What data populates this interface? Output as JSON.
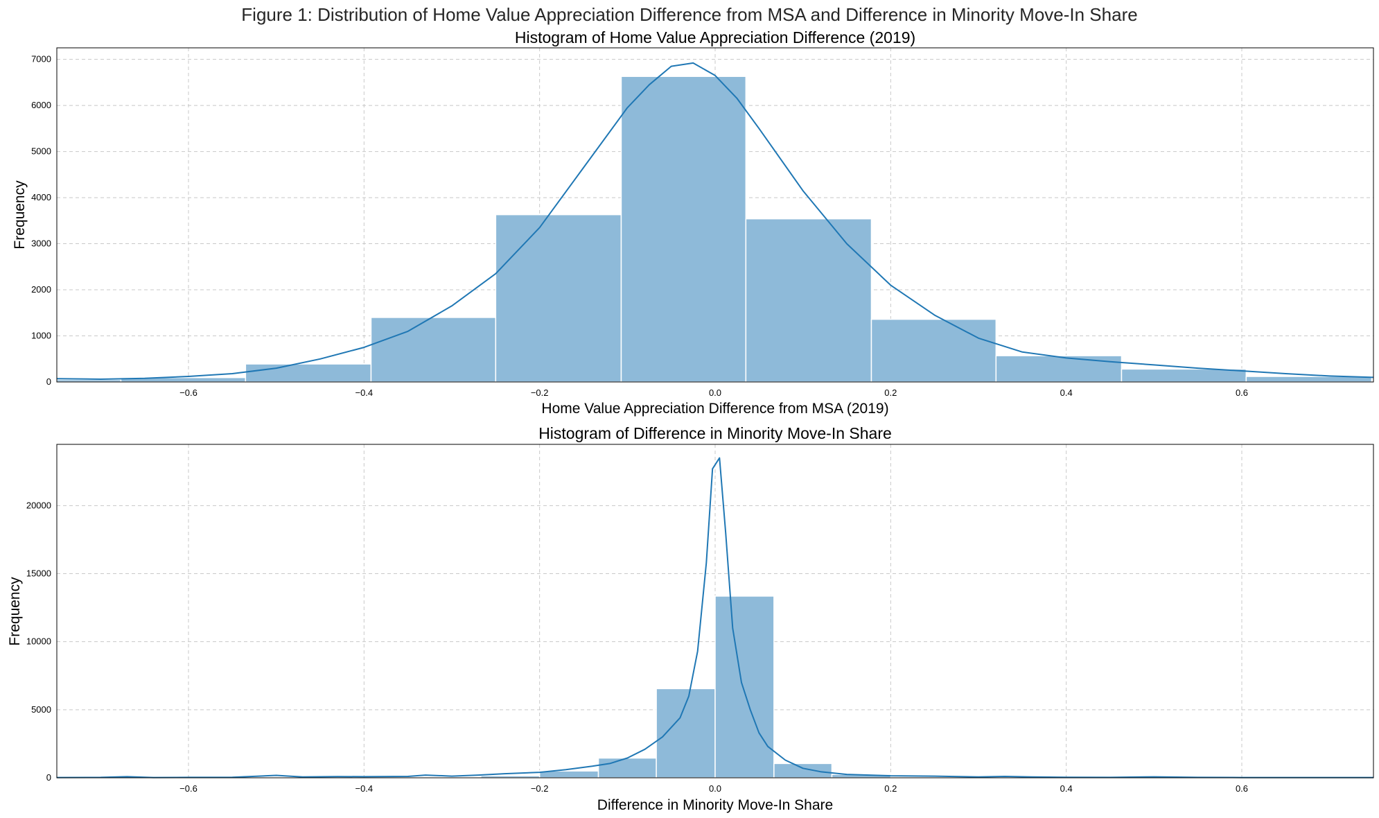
{
  "figure": {
    "suptitle": "Figure 1: Distribution of Home Value Appreciation Difference from MSA and Difference in Minority Move-In Share"
  },
  "chart_data": [
    {
      "type": "bar",
      "title": "Histogram of Home Value Appreciation Difference (2019)",
      "xlabel": "Home Value Appreciation Difference from MSA (2019)",
      "ylabel": "Frequency",
      "xlim": [
        -0.75,
        0.75
      ],
      "ylim": [
        0,
        7250
      ],
      "xticks": [
        -0.6,
        -0.4,
        -0.2,
        0.0,
        0.2,
        0.4,
        0.6
      ],
      "xtick_labels": [
        "−0.6",
        "−0.4",
        "−0.2",
        "0.0",
        "0.2",
        "0.4",
        "0.6"
      ],
      "yticks": [
        0,
        1000,
        2000,
        3000,
        4000,
        5000,
        6000,
        7000
      ],
      "ytick_labels": [
        "0",
        "1000",
        "2000",
        "3000",
        "4000",
        "5000",
        "6000",
        "7000"
      ],
      "grid": true,
      "bar_color": "#8ebad9",
      "line_color": "#1f77b4",
      "bins": [
        {
          "x0": -0.82,
          "x1": -0.677,
          "value": 50
        },
        {
          "x0": -0.677,
          "x1": -0.535,
          "value": 95
        },
        {
          "x0": -0.535,
          "x1": -0.392,
          "value": 390
        },
        {
          "x0": -0.392,
          "x1": -0.25,
          "value": 1400
        },
        {
          "x0": -0.25,
          "x1": -0.107,
          "value": 3630
        },
        {
          "x0": -0.107,
          "x1": 0.035,
          "value": 6630
        },
        {
          "x0": 0.035,
          "x1": 0.178,
          "value": 3540
        },
        {
          "x0": 0.178,
          "x1": 0.32,
          "value": 1360
        },
        {
          "x0": 0.32,
          "x1": 0.463,
          "value": 570
        },
        {
          "x0": 0.463,
          "x1": 0.605,
          "value": 280
        },
        {
          "x0": 0.605,
          "x1": 0.748,
          "value": 120
        }
      ],
      "kde": {
        "x": [
          -0.75,
          -0.7,
          -0.65,
          -0.6,
          -0.55,
          -0.5,
          -0.45,
          -0.4,
          -0.35,
          -0.3,
          -0.25,
          -0.2,
          -0.15,
          -0.1,
          -0.075,
          -0.05,
          -0.025,
          0.0,
          0.025,
          0.05,
          0.1,
          0.15,
          0.2,
          0.25,
          0.3,
          0.35,
          0.4,
          0.45,
          0.5,
          0.55,
          0.6,
          0.65,
          0.7,
          0.75
        ],
        "y": [
          70,
          60,
          80,
          120,
          180,
          300,
          500,
          750,
          1100,
          1650,
          2350,
          3350,
          4650,
          5950,
          6450,
          6850,
          6920,
          6650,
          6150,
          5500,
          4150,
          3000,
          2100,
          1450,
          950,
          650,
          520,
          440,
          370,
          300,
          240,
          180,
          130,
          100
        ]
      }
    },
    {
      "type": "bar",
      "title": "Histogram of Difference in Minority Move-In Share",
      "xlabel": "Difference in Minority Move-In Share",
      "ylabel": "Frequency",
      "xlim": [
        -0.75,
        0.75
      ],
      "ylim": [
        0,
        24500
      ],
      "xticks": [
        -0.6,
        -0.4,
        -0.2,
        0.0,
        0.2,
        0.4,
        0.6
      ],
      "xtick_labels": [
        "−0.6",
        "−0.4",
        "−0.2",
        "0.0",
        "0.2",
        "0.4",
        "0.6"
      ],
      "yticks": [
        0,
        5000,
        10000,
        15000,
        20000
      ],
      "ytick_labels": [
        "0",
        "5000",
        "10000",
        "15000",
        "20000"
      ],
      "grid": true,
      "bar_color": "#8ebad9",
      "line_color": "#1f77b4",
      "bins": [
        {
          "x0": -0.267,
          "x1": -0.2,
          "value": 150
        },
        {
          "x0": -0.2,
          "x1": -0.133,
          "value": 500
        },
        {
          "x0": -0.133,
          "x1": -0.067,
          "value": 1450
        },
        {
          "x0": -0.067,
          "x1": 0.0,
          "value": 6550
        },
        {
          "x0": 0.0,
          "x1": 0.067,
          "value": 13350
        },
        {
          "x0": 0.067,
          "x1": 0.133,
          "value": 1050
        },
        {
          "x0": 0.133,
          "x1": 0.2,
          "value": 250
        }
      ],
      "kde": {
        "x": [
          -0.75,
          -0.7,
          -0.67,
          -0.64,
          -0.6,
          -0.55,
          -0.5,
          -0.47,
          -0.43,
          -0.4,
          -0.35,
          -0.33,
          -0.3,
          -0.27,
          -0.24,
          -0.2,
          -0.17,
          -0.14,
          -0.12,
          -0.1,
          -0.08,
          -0.06,
          -0.04,
          -0.03,
          -0.02,
          -0.01,
          -0.003,
          0.005,
          0.012,
          0.02,
          0.03,
          0.04,
          0.05,
          0.06,
          0.08,
          0.1,
          0.12,
          0.15,
          0.2,
          0.25,
          0.3,
          0.33,
          0.36,
          0.4,
          0.45,
          0.5,
          0.55,
          0.6,
          0.65,
          0.7,
          0.75
        ],
        "y": [
          20,
          30,
          80,
          20,
          30,
          40,
          180,
          60,
          90,
          80,
          100,
          200,
          120,
          200,
          300,
          400,
          600,
          850,
          1050,
          1450,
          2100,
          3000,
          4400,
          6000,
          9300,
          15800,
          22700,
          23500,
          18000,
          11000,
          7000,
          5000,
          3300,
          2300,
          1300,
          700,
          450,
          250,
          150,
          120,
          60,
          100,
          60,
          40,
          30,
          70,
          30,
          20,
          20,
          20,
          20
        ]
      }
    }
  ]
}
